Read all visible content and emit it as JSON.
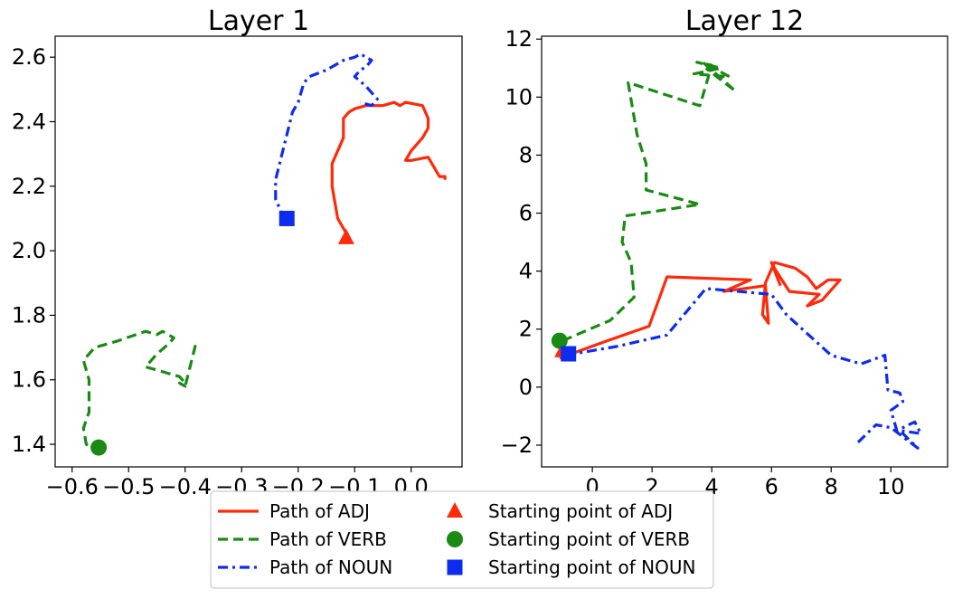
{
  "chart_data": [
    {
      "type": "line",
      "title": "Layer 1",
      "xlim": [
        -0.63,
        0.09
      ],
      "ylim": [
        1.33,
        2.665
      ],
      "xticks": [
        -0.6,
        -0.5,
        -0.4,
        -0.3,
        -0.2,
        -0.1,
        0.0
      ],
      "xtick_labels": [
        "−0.6",
        "−0.5",
        "−0.4",
        "−0.3",
        "−0.2",
        "−0.1",
        "0.0"
      ],
      "yticks": [
        1.4,
        1.6,
        1.8,
        2.0,
        2.2,
        2.4,
        2.6
      ],
      "ytick_labels": [
        "1.4",
        "1.6",
        "1.8",
        "2.0",
        "2.2",
        "2.4",
        "2.6"
      ],
      "series": [
        {
          "name": "Path of ADJ",
          "color": "#ff2a0a",
          "dash": "solid",
          "x": [
            -0.11,
            -0.13,
            -0.14,
            -0.14,
            -0.12,
            -0.12,
            -0.11,
            -0.1,
            -0.08,
            -0.05,
            -0.03,
            -0.02,
            -0.01,
            0.02,
            0.03,
            0.03,
            0.02,
            0.0,
            -0.01,
            0.0,
            0.03,
            0.04,
            0.05,
            0.06,
            0.06
          ],
          "y": [
            2.04,
            2.1,
            2.2,
            2.27,
            2.35,
            2.41,
            2.43,
            2.44,
            2.45,
            2.45,
            2.46,
            2.45,
            2.46,
            2.45,
            2.41,
            2.38,
            2.35,
            2.31,
            2.28,
            2.28,
            2.29,
            2.26,
            2.23,
            2.23,
            2.22
          ]
        },
        {
          "name": "Path of VERB",
          "color": "#1a8a14",
          "dash": "dashed",
          "x": [
            -0.55,
            -0.56,
            -0.575,
            -0.58,
            -0.57,
            -0.57,
            -0.58,
            -0.56,
            -0.52,
            -0.47,
            -0.45,
            -0.44,
            -0.42,
            -0.43,
            -0.45,
            -0.47,
            -0.45,
            -0.43,
            -0.41,
            -0.4,
            -0.4,
            -0.41,
            -0.4,
            -0.38
          ],
          "y": [
            1.39,
            1.38,
            1.4,
            1.45,
            1.5,
            1.6,
            1.66,
            1.7,
            1.72,
            1.75,
            1.74,
            1.75,
            1.73,
            1.71,
            1.68,
            1.64,
            1.63,
            1.62,
            1.61,
            1.59,
            1.58,
            1.59,
            1.58,
            1.72
          ]
        },
        {
          "name": "Path of NOUN",
          "color": "#0d2cf0",
          "dash": "dashdot",
          "x": [
            -0.22,
            -0.23,
            -0.24,
            -0.24,
            -0.23,
            -0.22,
            -0.21,
            -0.2,
            -0.19,
            -0.18,
            -0.15,
            -0.13,
            -0.12,
            -0.1,
            -0.09,
            -0.07,
            -0.08,
            -0.09,
            -0.1,
            -0.08,
            -0.06,
            -0.07,
            -0.09
          ],
          "y": [
            2.1,
            2.12,
            2.16,
            2.22,
            2.29,
            2.36,
            2.43,
            2.46,
            2.52,
            2.54,
            2.56,
            2.58,
            2.59,
            2.6,
            2.61,
            2.59,
            2.57,
            2.56,
            2.54,
            2.51,
            2.47,
            2.45,
            2.46
          ]
        }
      ],
      "markers": [
        {
          "name": "Starting point of ADJ",
          "shape": "triangle",
          "color": "#ff2a0a",
          "x": -0.115,
          "y": 2.04
        },
        {
          "name": "Starting point of VERB",
          "shape": "circle",
          "color": "#1a8a14",
          "x": -0.553,
          "y": 1.39
        },
        {
          "name": "Starting point of NOUN",
          "shape": "square",
          "color": "#0d2cf0",
          "x": -0.22,
          "y": 2.1
        }
      ]
    },
    {
      "type": "line",
      "title": "Layer 12",
      "xlim": [
        -1.7,
        11.9
      ],
      "ylim": [
        -2.75,
        12.1
      ],
      "xticks": [
        0,
        2,
        4,
        6,
        8,
        10
      ],
      "xtick_labels": [
        "0",
        "2",
        "4",
        "6",
        "8",
        "10"
      ],
      "yticks": [
        -2,
        0,
        2,
        4,
        6,
        8,
        10,
        12
      ],
      "ytick_labels": [
        "−2",
        "0",
        "2",
        "4",
        "6",
        "8",
        "10",
        "12"
      ],
      "series": [
        {
          "name": "Path of ADJ",
          "color": "#ff2a0a",
          "dash": "solid",
          "x": [
            -1.1,
            0.5,
            1.9,
            2.5,
            5.3,
            4.4,
            5.8,
            5.9,
            5.7,
            5.8,
            6.1,
            6.8,
            7.2,
            7.5,
            7.9,
            8.3,
            7.7,
            7.2,
            7.6,
            6.6,
            6.1,
            6.0,
            6.3
          ],
          "y": [
            1.0,
            1.6,
            2.1,
            3.8,
            3.7,
            3.3,
            3.5,
            2.2,
            2.5,
            3.6,
            4.3,
            4.1,
            3.8,
            3.4,
            3.7,
            3.7,
            3.0,
            2.8,
            3.2,
            3.3,
            4.1,
            4.3,
            3.5
          ]
        },
        {
          "name": "Path of VERB",
          "color": "#1a8a14",
          "dash": "dashed",
          "x": [
            -1.0,
            0.6,
            1.4,
            1.3,
            1.0,
            1.1,
            3.6,
            1.8,
            1.8,
            1.5,
            1.2,
            3.6,
            3.8,
            4.0,
            3.5,
            4.3,
            3.4,
            4.6,
            3.7,
            4.8,
            3.8
          ],
          "y": [
            1.6,
            2.3,
            3.1,
            4.3,
            5.0,
            5.9,
            6.3,
            6.8,
            7.7,
            8.7,
            10.5,
            9.7,
            10.4,
            11.1,
            11.2,
            11.0,
            10.8,
            10.7,
            11.2,
            10.2,
            11.0
          ]
        },
        {
          "name": "Path of NOUN",
          "color": "#0d2cf0",
          "dash": "dashdot",
          "x": [
            -0.9,
            0.8,
            2.5,
            3.8,
            6.0,
            6.5,
            8.0,
            9.0,
            9.8,
            9.9,
            10.3,
            10.4,
            10.0,
            10.2,
            10.8,
            11.0,
            10.3,
            10.9,
            10.0,
            9.5,
            8.9
          ],
          "y": [
            1.1,
            1.4,
            1.8,
            3.4,
            3.2,
            2.5,
            1.1,
            0.8,
            1.1,
            -0.1,
            -0.2,
            -0.5,
            -0.8,
            -1.5,
            -1.2,
            -1.6,
            -1.5,
            -2.1,
            -1.4,
            -1.3,
            -1.9
          ]
        }
      ],
      "markers": [
        {
          "name": "Starting point of ADJ",
          "shape": "triangle",
          "color": "#ff2a0a",
          "x": -1.0,
          "y": 1.25
        },
        {
          "name": "Starting point of VERB",
          "shape": "circle",
          "color": "#1a8a14",
          "x": -1.1,
          "y": 1.6
        },
        {
          "name": "Starting point of NOUN",
          "shape": "square",
          "color": "#0d2cf0",
          "x": -0.8,
          "y": 1.15
        }
      ]
    }
  ],
  "legend": {
    "placement": "bottom-center",
    "entries": [
      {
        "label": "Path of ADJ",
        "kind": "line",
        "dash": "solid",
        "color": "#ff2a0a"
      },
      {
        "label": "Path of VERB",
        "kind": "line",
        "dash": "dashed",
        "color": "#1a8a14"
      },
      {
        "label": "Path of NOUN",
        "kind": "line",
        "dash": "dashdot",
        "color": "#0d2cf0"
      },
      {
        "label": "Starting point of ADJ",
        "kind": "marker",
        "shape": "triangle",
        "color": "#ff2a0a"
      },
      {
        "label": "Starting point of VERB",
        "kind": "marker",
        "shape": "circle",
        "color": "#1a8a14"
      },
      {
        "label": "Starting point of NOUN",
        "kind": "marker",
        "shape": "square",
        "color": "#0d2cf0"
      }
    ]
  }
}
